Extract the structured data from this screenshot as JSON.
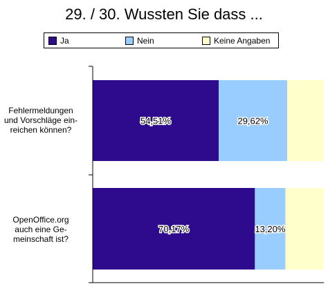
{
  "chart_data": {
    "type": "bar",
    "orientation": "horizontal",
    "stacked": true,
    "title": "29. / 30. Wussten Sie dass ...",
    "categories": [
      [
        "Fehlermeldungen",
        "und Vorschläge ein-",
        "reichen können?"
      ],
      [
        "OpenOffice.org",
        "auch eine Ge-",
        "meinschaft ist?"
      ]
    ],
    "series": [
      {
        "name": "Ja",
        "color": "#2e0a8c",
        "values": [
          54.51,
          70.17
        ],
        "labels": [
          "54,51%",
          "70,17%"
        ]
      },
      {
        "name": "Nein",
        "color": "#99ccff",
        "values": [
          29.62,
          13.2
        ],
        "labels": [
          "29,62%",
          "13,20%"
        ]
      },
      {
        "name": "Keine Angaben",
        "color": "#ffffcc",
        "values": [
          15.87,
          16.63
        ],
        "labels": [
          "",
          ""
        ]
      }
    ],
    "xlim": [
      0,
      100
    ],
    "legend_position": "top",
    "grid": false
  }
}
